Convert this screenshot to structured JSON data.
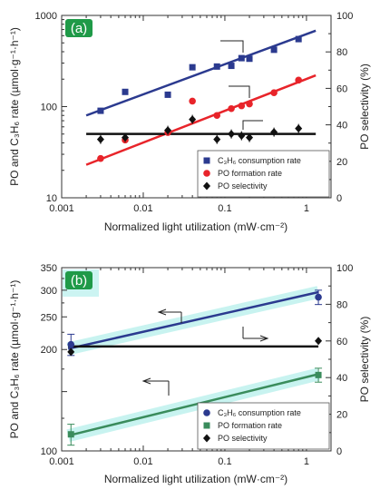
{
  "chart_data": [
    {
      "panel": "(a)",
      "type": "scatter",
      "xlabel": "Normalized light utilization (mW·cm⁻²)",
      "ylabel_left": "PO and C₃H₆ rate (µmol·g⁻¹·h⁻¹)",
      "ylabel_right": "PO selectivity (%)",
      "x_scale": "log",
      "y_scale": "log",
      "xlim": [
        0.001,
        2
      ],
      "ylim": [
        10,
        1000
      ],
      "ylim_right": [
        0,
        100
      ],
      "x_ticks": [
        "0.001",
        "0.01",
        "0.1",
        "1"
      ],
      "y_ticks": [
        "10",
        "100",
        "1000"
      ],
      "y_ticks_right": [
        "0",
        "20",
        "40",
        "60",
        "80",
        "100"
      ],
      "legend_position": "bottom-right",
      "legend": [
        "C₃H₆ consumption rate",
        "PO formation rate",
        "PO selectivity"
      ],
      "colors": {
        "c3h6": "#2b3a8f",
        "po": "#e8242a",
        "sel": "#111111"
      },
      "series": [
        {
          "name": "C₃H₆ consumption rate",
          "axis": "left",
          "marker": "square",
          "color": "#2b3a8f",
          "x": [
            0.003,
            0.006,
            0.02,
            0.04,
            0.08,
            0.12,
            0.16,
            0.2,
            0.4,
            0.8
          ],
          "y": [
            90,
            145,
            135,
            270,
            275,
            280,
            340,
            335,
            420,
            550
          ]
        },
        {
          "name": "PO formation rate",
          "axis": "left",
          "marker": "circle",
          "color": "#e8242a",
          "x": [
            0.003,
            0.006,
            0.02,
            0.04,
            0.08,
            0.12,
            0.16,
            0.2,
            0.4,
            0.8
          ],
          "y": [
            27,
            43,
            52,
            115,
            80,
            95,
            102,
            107,
            142,
            195
          ]
        },
        {
          "name": "PO selectivity",
          "axis": "right",
          "marker": "diamond",
          "color": "#111111",
          "x": [
            0.003,
            0.006,
            0.02,
            0.04,
            0.08,
            0.12,
            0.16,
            0.2,
            0.4,
            0.8
          ],
          "y": [
            32,
            33,
            37,
            43,
            32,
            35,
            34,
            33,
            36,
            38
          ]
        }
      ],
      "fit_lines": [
        {
          "axis": "left",
          "color": "#2b3a8f",
          "x": [
            0.002,
            1.3
          ],
          "y": [
            80,
            680
          ]
        },
        {
          "axis": "left",
          "color": "#e8242a",
          "x": [
            0.002,
            1.3
          ],
          "y": [
            23,
            220
          ]
        },
        {
          "axis": "right",
          "color": "#111111",
          "x": [
            0.002,
            1.3
          ],
          "y": [
            35,
            35
          ]
        }
      ]
    },
    {
      "panel": "(b)",
      "type": "scatter",
      "xlabel": "Normalized light utilization (mW·cm⁻²)",
      "ylabel_left": "PO and C₃H₆ rate (µmol·g⁻¹·h⁻¹)",
      "ylabel_right": "PO selectivity (%)",
      "x_scale": "log",
      "y_scale": "log",
      "xlim": [
        0.001,
        2
      ],
      "ylim": [
        100,
        350
      ],
      "ylim_right": [
        0,
        100
      ],
      "x_ticks": [
        "0.001",
        "0.01",
        "0.1",
        "1"
      ],
      "y_ticks": [
        "100",
        "200",
        "250",
        "300",
        "350"
      ],
      "y_ticks_right": [
        "0",
        "20",
        "40",
        "60",
        "80",
        "100"
      ],
      "legend_position": "bottom-right",
      "legend": [
        "C₃H₆ consumption rate",
        "PO formation rate",
        "PO selectivity"
      ],
      "colors": {
        "c3h6": "#2b3a8f",
        "po": "#3a8c5c",
        "sel": "#111111",
        "band": "#b6f0ec"
      },
      "series": [
        {
          "name": "C₃H₆ consumption rate",
          "axis": "left",
          "marker": "circle",
          "color": "#2b3a8f",
          "x": [
            0.0013,
            1.4
          ],
          "y": [
            207,
            286
          ],
          "err": [
            15,
            14
          ]
        },
        {
          "name": "PO formation rate",
          "axis": "left",
          "marker": "square",
          "color": "#3a8c5c",
          "x": [
            0.0013,
            1.4
          ],
          "y": [
            112,
            168
          ],
          "err": [
            8,
            8
          ]
        },
        {
          "name": "PO selectivity",
          "axis": "right",
          "marker": "diamond",
          "color": "#111111",
          "x": [
            0.0013,
            1.4
          ],
          "y": [
            54,
            60
          ]
        }
      ],
      "fit_lines": [
        {
          "axis": "left",
          "color": "#2b3a8f",
          "x": [
            0.0012,
            1.4
          ],
          "y": [
            201,
            296
          ]
        },
        {
          "axis": "left",
          "color": "#3a8c5c",
          "x": [
            0.0012,
            1.4
          ],
          "y": [
            111,
            169
          ]
        },
        {
          "axis": "right",
          "color": "#111111",
          "x": [
            0.0012,
            1.4
          ],
          "y": [
            57,
            57
          ]
        }
      ]
    }
  ]
}
